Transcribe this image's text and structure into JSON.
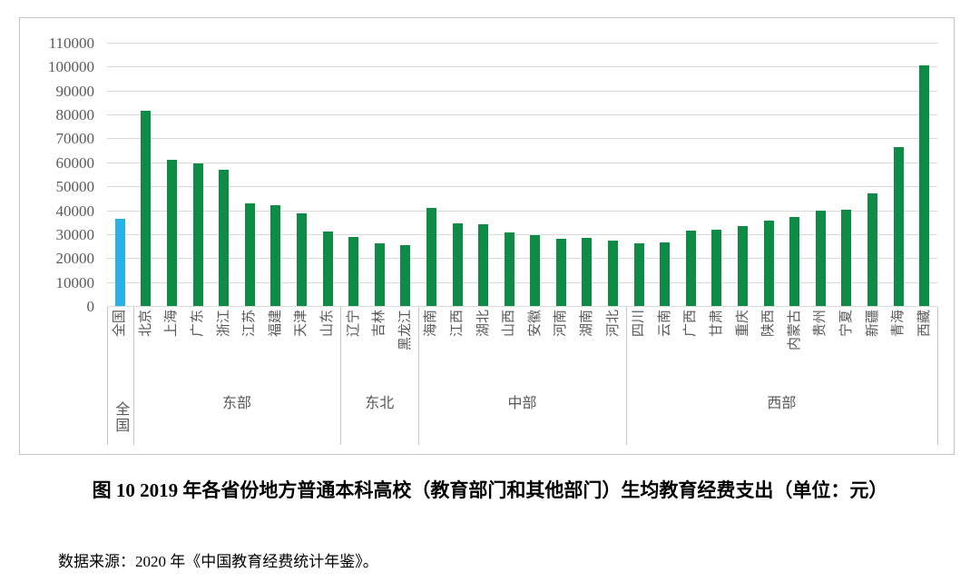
{
  "figure": {
    "title": "图 10  2019 年各省份地方普通本科高校（教育部门和其他部门）生均教育经费支出（单位：元）",
    "source": "数据来源：2020 年《中国教育经费统计年鉴》。"
  },
  "chart_data": {
    "type": "bar",
    "title": "",
    "xlabel": "",
    "ylabel": "",
    "ylim": [
      0,
      110000
    ],
    "y_ticks": [
      0,
      10000,
      20000,
      30000,
      40000,
      50000,
      60000,
      70000,
      80000,
      90000,
      100000,
      110000
    ],
    "grid": true,
    "legend": "none",
    "colors": {
      "national_bar": "#29b1e6",
      "province_bar": "#0e8c45",
      "gridline": "#dadada",
      "label_text": "#595959"
    },
    "categories": [
      "全国",
      "北京",
      "上海",
      "广东",
      "浙江",
      "江苏",
      "福建",
      "天津",
      "山东",
      "辽宁",
      "吉林",
      "黑龙江",
      "海南",
      "江西",
      "湖北",
      "山西",
      "安徽",
      "河南",
      "湖南",
      "河北",
      "四川",
      "云南",
      "广西",
      "甘肃",
      "重庆",
      "陕西",
      "内蒙古",
      "贵州",
      "宁夏",
      "新疆",
      "青海",
      "西藏"
    ],
    "values": [
      36500,
      81500,
      61000,
      59600,
      57000,
      43000,
      42000,
      38600,
      31000,
      28900,
      26100,
      25400,
      41000,
      34400,
      34100,
      30700,
      29700,
      28200,
      28400,
      27200,
      26300,
      26400,
      31400,
      31800,
      33500,
      35500,
      37200,
      39900,
      40300,
      47100,
      66500,
      100700
    ],
    "groups": [
      {
        "label": "全国",
        "span": 1,
        "vertical": true
      },
      {
        "label": "东部",
        "span": 8,
        "vertical": false
      },
      {
        "label": "东北",
        "span": 3,
        "vertical": false
      },
      {
        "label": "中部",
        "span": 8,
        "vertical": false
      },
      {
        "label": "西部",
        "span": 12,
        "vertical": false
      }
    ]
  }
}
